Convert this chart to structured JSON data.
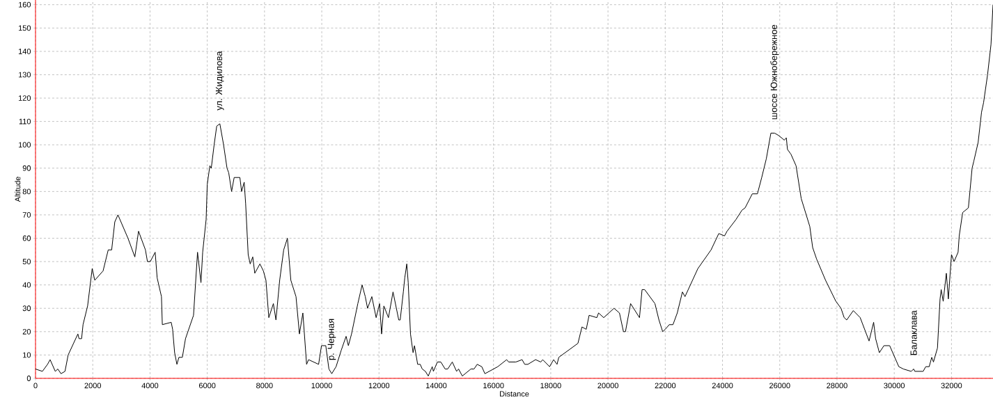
{
  "chart_data": {
    "type": "line",
    "xlabel": "Distance",
    "ylabel": "Altitude",
    "x": [
      0,
      240,
      420,
      510,
      690,
      780,
      890,
      1030,
      1140,
      1480,
      1520,
      1610,
      1660,
      1820,
      1980,
      2070,
      2360,
      2540,
      2660,
      2770,
      2880,
      3230,
      3470,
      3600,
      3840,
      3910,
      4010,
      4180,
      4250,
      4400,
      4430,
      4740,
      4790,
      4860,
      4940,
      5010,
      5130,
      5240,
      5520,
      5660,
      5780,
      5840,
      5960,
      6000,
      6090,
      6140,
      6240,
      6330,
      6440,
      6570,
      6690,
      6750,
      6850,
      6940,
      7140,
      7200,
      7290,
      7340,
      7430,
      7500,
      7590,
      7660,
      7840,
      7960,
      8050,
      8150,
      8310,
      8400,
      8530,
      8670,
      8800,
      8920,
      9100,
      9220,
      9340,
      9470,
      9540,
      9890,
      9990,
      10140,
      10250,
      10350,
      10500,
      10680,
      10850,
      10930,
      11040,
      11260,
      11410,
      11520,
      11600,
      11750,
      11900,
      12020,
      12090,
      12170,
      12330,
      12490,
      12690,
      12740,
      12850,
      12900,
      12970,
      13020,
      13100,
      13190,
      13240,
      13350,
      13440,
      13510,
      13620,
      13720,
      13860,
      13900,
      14040,
      14160,
      14310,
      14400,
      14560,
      14710,
      14780,
      14910,
      15210,
      15320,
      15430,
      15590,
      15700,
      16150,
      16460,
      16530,
      16780,
      17000,
      17090,
      17200,
      17470,
      17650,
      17720,
      17960,
      18100,
      18220,
      18280,
      18950,
      19090,
      19240,
      19340,
      19610,
      19670,
      19850,
      20210,
      20400,
      20540,
      20610,
      20790,
      21100,
      21190,
      21280,
      21640,
      21780,
      21910,
      22000,
      22140,
      22270,
      22420,
      22600,
      22690,
      23140,
      23600,
      23870,
      24070,
      24160,
      24470,
      24680,
      24790,
      25040,
      25220,
      25370,
      25530,
      25690,
      25820,
      25960,
      26160,
      26230,
      26270,
      26390,
      26570,
      26750,
      27050,
      27150,
      27290,
      27600,
      27960,
      28140,
      28250,
      28340,
      28570,
      28810,
      29120,
      29280,
      29350,
      29480,
      29640,
      29840,
      30160,
      30320,
      30590,
      30680,
      30720,
      31010,
      31100,
      31220,
      31310,
      31370,
      31510,
      31600,
      31640,
      31710,
      31820,
      31890,
      32000,
      32090,
      32230,
      32270,
      32390,
      32590,
      32720,
      32780,
      32930,
      33050,
      33120,
      33260,
      33380,
      33450
    ],
    "series": [
      {
        "color": "#000000",
        "values": [
          4,
          3,
          6,
          8,
          3,
          4,
          2,
          3,
          10,
          19,
          17,
          17,
          23,
          31,
          47,
          42,
          46,
          55,
          55,
          67,
          70,
          60,
          52,
          63,
          55,
          50,
          50,
          54,
          43,
          35,
          23,
          24,
          21,
          11,
          6,
          9,
          9,
          17,
          27,
          54,
          41,
          54,
          68,
          83,
          91,
          90,
          100,
          108,
          109,
          100,
          90,
          88,
          80,
          86,
          86,
          80,
          84,
          75,
          53,
          49,
          52,
          45,
          49,
          46,
          42,
          26,
          32,
          25,
          42,
          55,
          60,
          42,
          35,
          19,
          28,
          6,
          8,
          6,
          14,
          14,
          4,
          2,
          5,
          12,
          18,
          14,
          19,
          32,
          40,
          35,
          30,
          35,
          26,
          32,
          19,
          31,
          26,
          37,
          25,
          25,
          37,
          43,
          49,
          41,
          19,
          11,
          14,
          6,
          6,
          4,
          3,
          1,
          5,
          3,
          7,
          7,
          4,
          4,
          7,
          3,
          4,
          1,
          4,
          4,
          6,
          5,
          2,
          5,
          8,
          7,
          7,
          8,
          6,
          6,
          8,
          7,
          8,
          5,
          8,
          6,
          9,
          15,
          22,
          21,
          27,
          26,
          28,
          26,
          30,
          28,
          20,
          20,
          32,
          26,
          38,
          38,
          32,
          25,
          20,
          21,
          23,
          23,
          28,
          37,
          35,
          47,
          55,
          62,
          61,
          63,
          68,
          72,
          73,
          79,
          79,
          86,
          94,
          105,
          105,
          104,
          102,
          103,
          98,
          96,
          91,
          77,
          65,
          56,
          51,
          42,
          33,
          30,
          26,
          25,
          29,
          26,
          16,
          24,
          17,
          11,
          14,
          14,
          5,
          4,
          3,
          4,
          3,
          3,
          5,
          5,
          9,
          7,
          13,
          34,
          38,
          33,
          45,
          34,
          53,
          50,
          54,
          61,
          71,
          73,
          90,
          93,
          101,
          114,
          118,
          130,
          143,
          160
        ]
      }
    ],
    "xlim": [
      0,
      33450
    ],
    "ylim": [
      0,
      162
    ],
    "xticks": [
      0,
      2000,
      4000,
      6000,
      8000,
      10000,
      12000,
      14000,
      16000,
      18000,
      20000,
      22000,
      24000,
      26000,
      28000,
      30000,
      32000
    ],
    "yticks": [
      0,
      10,
      20,
      30,
      40,
      50,
      60,
      70,
      80,
      90,
      100,
      110,
      120,
      130,
      140,
      150,
      160
    ],
    "grid": true,
    "line_style": "solid",
    "annotations": [
      {
        "text": "ул. Жидилова",
        "x": 6440,
        "y": 109
      },
      {
        "text": "р. Черная",
        "x": 10350,
        "y": 2
      },
      {
        "text": "шоссе Южнобережное",
        "x": 25820,
        "y": 105
      },
      {
        "text": "Балаклава",
        "x": 30680,
        "y": 4
      }
    ]
  }
}
